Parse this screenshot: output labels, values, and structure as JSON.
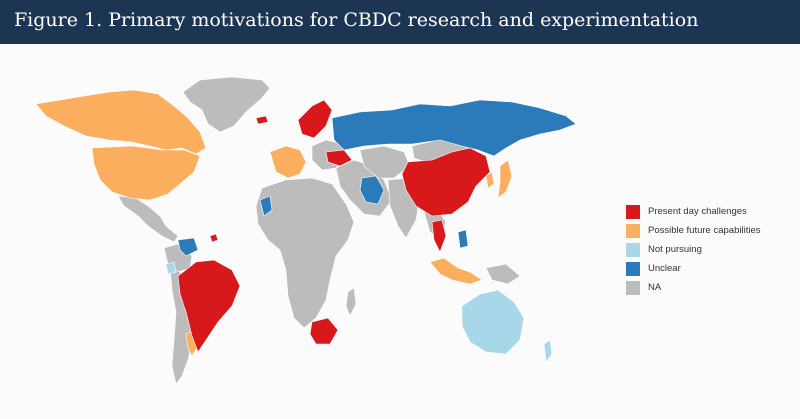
{
  "header": {
    "title": "Figure 1. Primary motivations for CBDC research and experimentation"
  },
  "colors": {
    "header_bg": "#1c3553",
    "present_day": "#d7191c",
    "future": "#fbaf5e",
    "not_pursuing": "#a9d7ea",
    "unclear": "#2b7bba",
    "na": "#bcbcbc"
  },
  "legend": {
    "position": "right",
    "items": [
      {
        "label": "Present day challenges",
        "color": "#d7191c"
      },
      {
        "label": "Possible future capabilities",
        "color": "#fbaf5e"
      },
      {
        "label": "Not pursuing",
        "color": "#a9d7ea"
      },
      {
        "label": "Unclear",
        "color": "#2b7bba"
      },
      {
        "label": "NA",
        "color": "#bcbcbc"
      }
    ]
  }
}
